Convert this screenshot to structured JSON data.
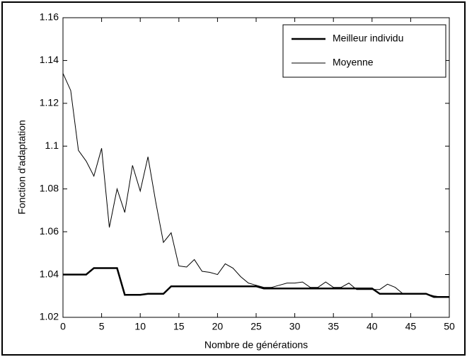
{
  "chart_data": {
    "type": "line",
    "xlabel": "Nombre de générations",
    "ylabel": "Fonction d'adaptation",
    "x": [
      0,
      1,
      2,
      3,
      4,
      5,
      6,
      7,
      8,
      9,
      10,
      11,
      12,
      13,
      14,
      15,
      16,
      17,
      18,
      19,
      20,
      21,
      22,
      23,
      24,
      25,
      26,
      27,
      28,
      29,
      30,
      31,
      32,
      33,
      34,
      35,
      36,
      37,
      38,
      39,
      40,
      41,
      42,
      43,
      44,
      45,
      46,
      47,
      48,
      49,
      50
    ],
    "series": [
      {
        "name": "Meilleur individu",
        "color": "#000000",
        "width": 2.5,
        "values": [
          1.04,
          1.04,
          1.04,
          1.04,
          1.043,
          1.043,
          1.043,
          1.043,
          1.0305,
          1.0305,
          1.0305,
          1.031,
          1.031,
          1.031,
          1.0345,
          1.0345,
          1.0345,
          1.0345,
          1.0345,
          1.0345,
          1.0345,
          1.0345,
          1.0345,
          1.0345,
          1.0345,
          1.0345,
          1.0335,
          1.0335,
          1.0335,
          1.0335,
          1.0335,
          1.0335,
          1.0335,
          1.0335,
          1.0335,
          1.0335,
          1.0335,
          1.0335,
          1.0335,
          1.0335,
          1.0335,
          1.031,
          1.031,
          1.031,
          1.031,
          1.031,
          1.031,
          1.031,
          1.0295,
          1.0295,
          1.0295
        ]
      },
      {
        "name": "Moyenne",
        "color": "#000000",
        "width": 1,
        "values": [
          1.134,
          1.126,
          1.098,
          1.093,
          1.086,
          1.099,
          1.062,
          1.08,
          1.069,
          1.091,
          1.079,
          1.095,
          1.074,
          1.055,
          1.0595,
          1.044,
          1.0435,
          1.047,
          1.0415,
          1.041,
          1.04,
          1.045,
          1.043,
          1.039,
          1.036,
          1.035,
          1.034,
          1.034,
          1.035,
          1.036,
          1.036,
          1.0365,
          1.034,
          1.034,
          1.0365,
          1.034,
          1.034,
          1.036,
          1.033,
          1.033,
          1.033,
          1.033,
          1.0355,
          1.034,
          1.031,
          1.031,
          1.031,
          1.031,
          1.03,
          1.0295,
          1.0295
        ]
      }
    ],
    "xlim": [
      0,
      50
    ],
    "xticks": [
      0,
      5,
      10,
      15,
      20,
      25,
      30,
      35,
      40,
      45,
      50
    ],
    "ylim": [
      1.02,
      1.16
    ],
    "yticks": [
      1.02,
      1.04,
      1.06,
      1.08,
      1.1,
      1.12,
      1.14,
      1.16
    ],
    "grid": false,
    "legend": "upper right"
  }
}
